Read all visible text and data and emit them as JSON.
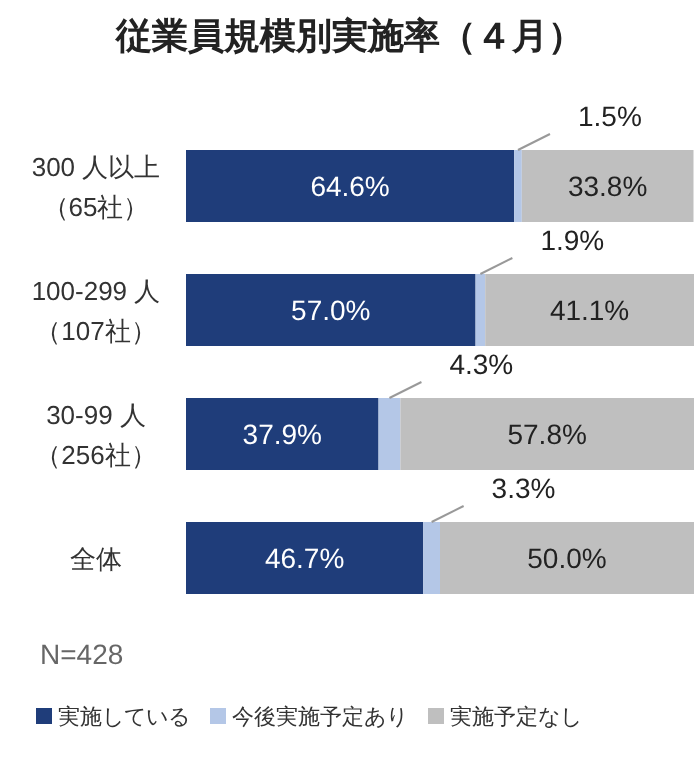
{
  "chart_data": {
    "type": "bar",
    "orientation": "horizontal",
    "stacked": true,
    "title": "従業員規模別実施率（４月）",
    "categories": [
      "300 人以上（65社）",
      "100-299 人（107社）",
      "30-99 人（256社）",
      "全体"
    ],
    "series": [
      {
        "name": "実施している",
        "color": "#1f3d7a",
        "values": [
          64.6,
          57.0,
          37.9,
          46.7
        ],
        "value_labels": [
          "64.6%",
          "57.0%",
          "37.9%",
          "46.7%"
        ]
      },
      {
        "name": "今後実施予定あり",
        "color": "#b4c7e7",
        "values": [
          1.5,
          1.9,
          4.3,
          3.3
        ],
        "value_labels": [
          "1.5%",
          "1.9%",
          "4.3%",
          "3.3%"
        ]
      },
      {
        "name": "実施予定なし",
        "color": "#bfbfbf",
        "values": [
          33.8,
          41.1,
          57.8,
          50.0
        ],
        "value_labels": [
          "33.8%",
          "41.1%",
          "57.8%",
          "50.0%"
        ]
      }
    ],
    "annotations": [
      "N=428"
    ],
    "legend": "bottom"
  }
}
